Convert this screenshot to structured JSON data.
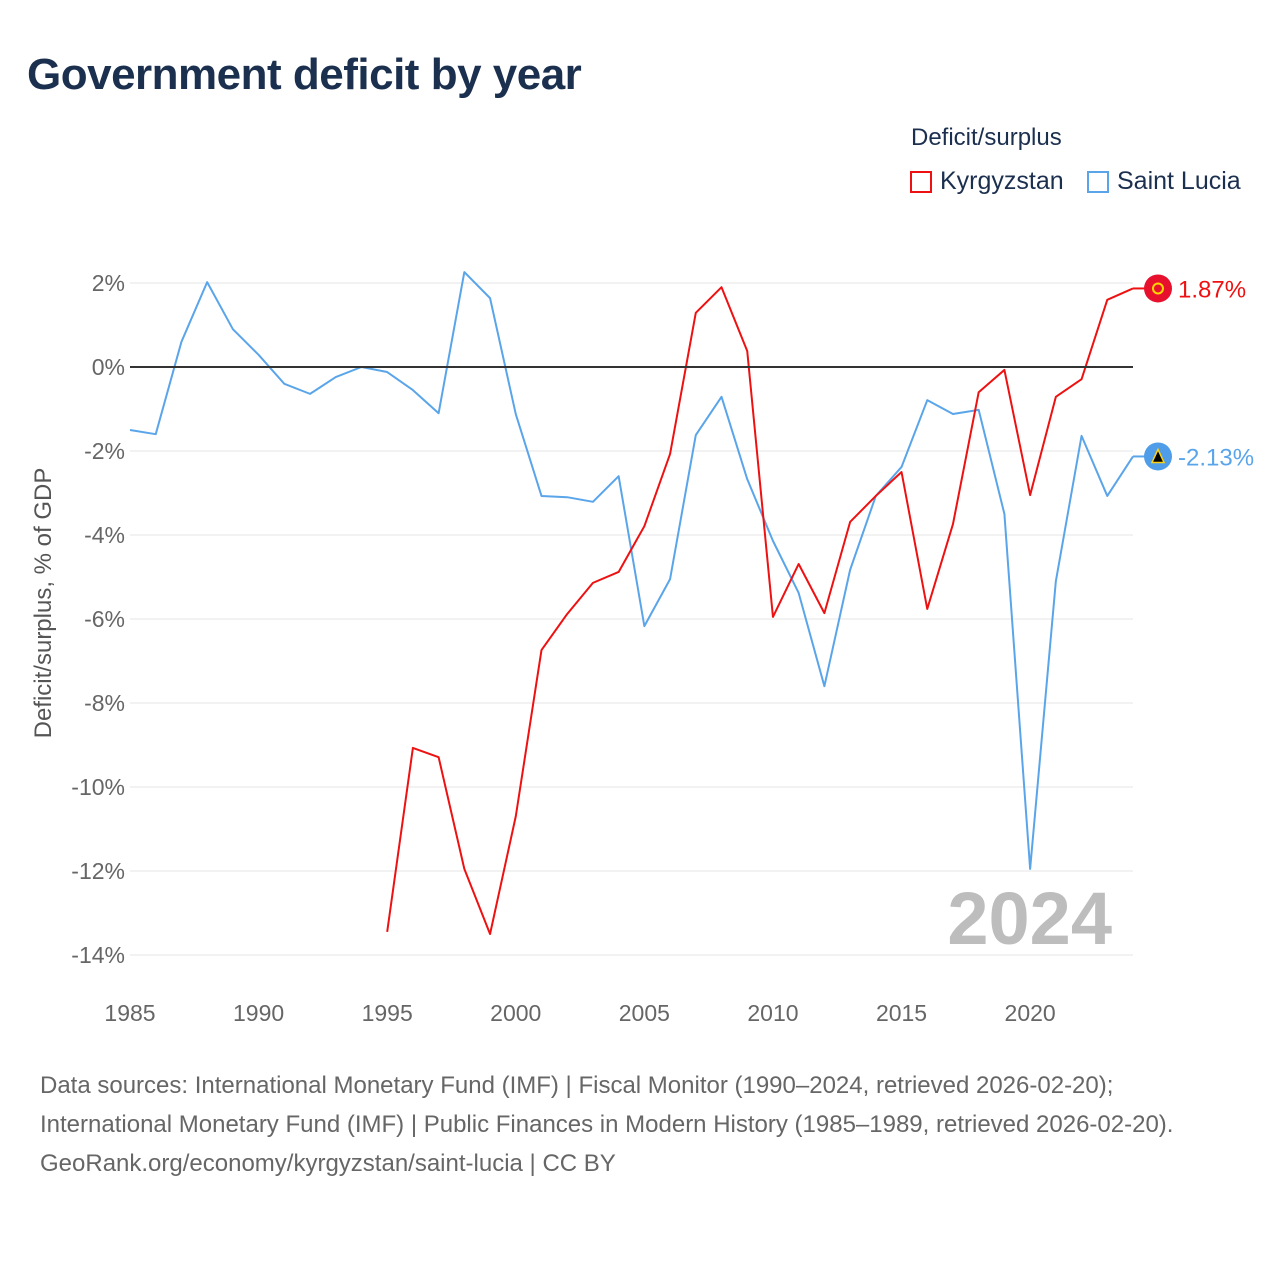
{
  "title": "Government deficit by year",
  "legend": {
    "title": "Deficit/surplus",
    "items": [
      {
        "label": "Kyrgyzstan",
        "color": "#ee1111"
      },
      {
        "label": "Saint Lucia",
        "color": "#5aa5ea"
      }
    ]
  },
  "sources": {
    "line1": "Data sources: International Monetary Fund (IMF) | Fiscal Monitor (1990–2024, retrieved 2026-02-20); International Monetary Fund (IMF) | Public Finances in Modern History (1985–1989, retrieved 2026-02-20).",
    "line2": "GeoRank.org/economy/kyrgyzstan/saint-lucia | CC BY"
  },
  "chart_data": {
    "type": "line",
    "ylabel": "Deficit/surplus, % of GDP",
    "xlim": [
      1985,
      2024
    ],
    "ylim": [
      -14,
      2
    ],
    "xticks": [
      1985,
      1990,
      1995,
      2000,
      2005,
      2010,
      2015,
      2020
    ],
    "yticks": [
      2,
      0,
      -2,
      -4,
      -6,
      -8,
      -10,
      -12,
      -14
    ],
    "ytick_labels": [
      "2%",
      "0%",
      "-2%",
      "-4%",
      "-6%",
      "-8%",
      "-10%",
      "-12%",
      "-14%"
    ],
    "year_watermark": "2024",
    "series": [
      {
        "name": "Kyrgyzstan",
        "color": "#ee1111",
        "end_label": "1.87%",
        "x": [
          1995,
          1996,
          1997,
          1998,
          1999,
          2000,
          2001,
          2002,
          2003,
          2004,
          2005,
          2006,
          2007,
          2008,
          2009,
          2010,
          2011,
          2012,
          2013,
          2014,
          2015,
          2016,
          2017,
          2018,
          2019,
          2020,
          2021,
          2022,
          2023,
          2024
        ],
        "values": [
          -13.45,
          -9.07,
          -9.29,
          -11.95,
          -13.5,
          -10.7,
          -6.74,
          -5.88,
          -5.14,
          -4.88,
          -3.79,
          -2.07,
          1.29,
          1.9,
          0.38,
          -5.95,
          -4.69,
          -5.86,
          -3.69,
          -3.07,
          -2.5,
          -5.76,
          -3.74,
          -0.6,
          -0.07,
          -3.05,
          -0.71,
          -0.29,
          1.6,
          1.87
        ]
      },
      {
        "name": "Saint Lucia",
        "color": "#5aa5ea",
        "end_label": "-2.13%",
        "x": [
          1985,
          1986,
          1987,
          1988,
          1989,
          1990,
          1991,
          1992,
          1993,
          1994,
          1995,
          1996,
          1997,
          1998,
          1999,
          2000,
          2001,
          2002,
          2003,
          2004,
          2005,
          2006,
          2007,
          2008,
          2009,
          2010,
          2011,
          2012,
          2013,
          2014,
          2015,
          2016,
          2017,
          2018,
          2019,
          2020,
          2021,
          2022,
          2023,
          2024
        ],
        "values": [
          -1.5,
          -1.6,
          0.6,
          2.02,
          0.9,
          0.29,
          -0.4,
          -0.64,
          -0.24,
          0,
          -0.12,
          -0.55,
          -1.1,
          2.26,
          1.64,
          -1.12,
          -3.07,
          -3.1,
          -3.21,
          -2.6,
          -6.17,
          -5.05,
          -1.62,
          -0.71,
          -2.67,
          -4.14,
          -5.38,
          -7.6,
          -4.83,
          -3.07,
          -2.38,
          -0.79,
          -1.12,
          -1.02,
          -3.5,
          -11.95,
          -5.1,
          -1.64,
          -3.07,
          -2.13
        ]
      }
    ]
  }
}
